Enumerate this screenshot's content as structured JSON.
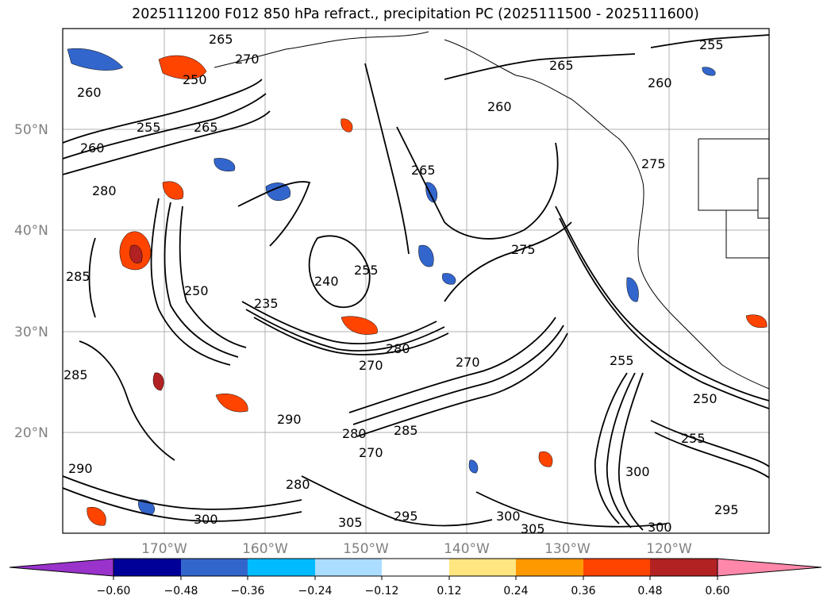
{
  "title": "2025111200 F012 850 hPa refract., precipitation PC (2025111500 - 2025111600)",
  "map": {
    "lat_ticks": [
      "50°N",
      "40°N",
      "30°N",
      "20°N"
    ],
    "lon_ticks": [
      "170°W",
      "160°W",
      "150°W",
      "140°W",
      "130°W",
      "120°W"
    ],
    "contour_labels": [
      "265",
      "270",
      "260",
      "255",
      "250",
      "265",
      "260",
      "255",
      "280",
      "285",
      "265",
      "285",
      "250",
      "235",
      "240",
      "255",
      "275",
      "260",
      "265",
      "275",
      "280",
      "270",
      "290",
      "280",
      "285",
      "270",
      "290",
      "280",
      "270",
      "300",
      "305",
      "295",
      "300",
      "305",
      "300",
      "295",
      "300",
      "255",
      "250",
      "255",
      "260"
    ]
  },
  "colorbar": {
    "tick_labels": [
      "−0.60",
      "−0.48",
      "−0.36",
      "−0.24",
      "−0.12",
      "0.12",
      "0.24",
      "0.36",
      "0.48",
      "0.60"
    ],
    "colors": [
      "#9933cc",
      "#000099",
      "#3366cc",
      "#00bbff",
      "#aaddff",
      "#ffffff",
      "#ffe680",
      "#ff9900",
      "#ff4400",
      "#b22222",
      "#ff88aa"
    ]
  }
}
